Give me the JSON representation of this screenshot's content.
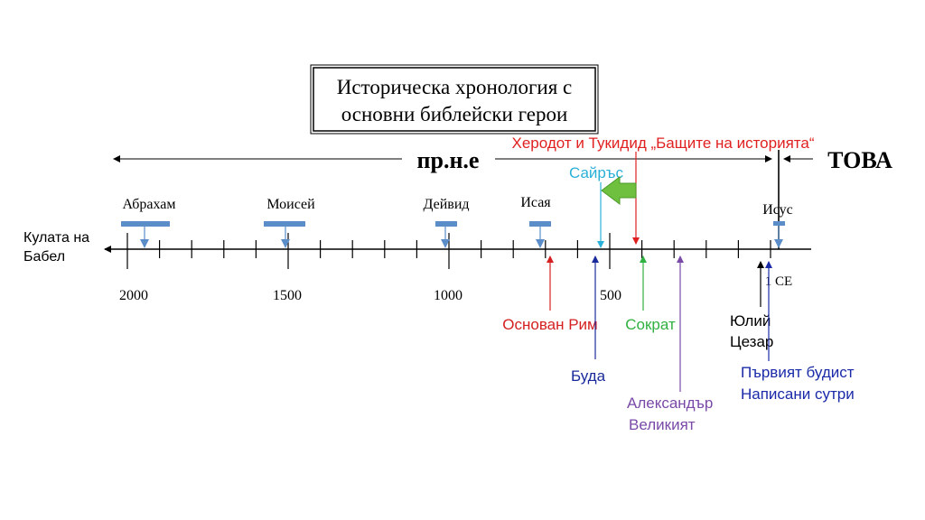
{
  "title": {
    "line1": "Историческа хронология с",
    "line2": "основни библейски герои"
  },
  "era_labels": {
    "bce": "пр.н.е",
    "now": "ТОВА"
  },
  "ticks": {
    "year_labels": [
      "2000",
      "1500",
      "1000",
      "500"
    ],
    "ce_label": "1 CE"
  },
  "figures": [
    {
      "id": "abraham",
      "name": "Абрахам"
    },
    {
      "id": "moses",
      "name": "Моисей"
    },
    {
      "id": "david",
      "name": "Дейвид"
    },
    {
      "id": "isaiah",
      "name": "Исая"
    },
    {
      "id": "jesus",
      "name": "Исус"
    }
  ],
  "events": {
    "tower": {
      "line1": "Кулата на",
      "line2": "Бабел"
    },
    "herodotus": "Херодот и Тукидид „Бащите на историята“",
    "cyrus": "Сайръс",
    "rome": "Основан Рим",
    "socrates": "Сократ",
    "buddha": "Буда",
    "alexander": {
      "line1": "Александър",
      "line2": "Великият"
    },
    "caesar": {
      "line1": "Юлий",
      "line2": "Цезар"
    },
    "buddhist": {
      "line1": "Първият будист",
      "line2": "Написани сутри"
    }
  },
  "colors": {
    "axis": "#000000",
    "figure_bar": "#5b8ec9",
    "figure_arrow": "#5b8ec9",
    "herodotus": "#e02020",
    "cyrus": "#2ab0d8",
    "rome": "#d42020",
    "socrates": "#30b040",
    "buddha": "#1a2a9a",
    "alexander": "#7a4aa8",
    "caesar": "#000000",
    "buddhist": "#1a2aa8",
    "green_arrow": "#70c040"
  }
}
